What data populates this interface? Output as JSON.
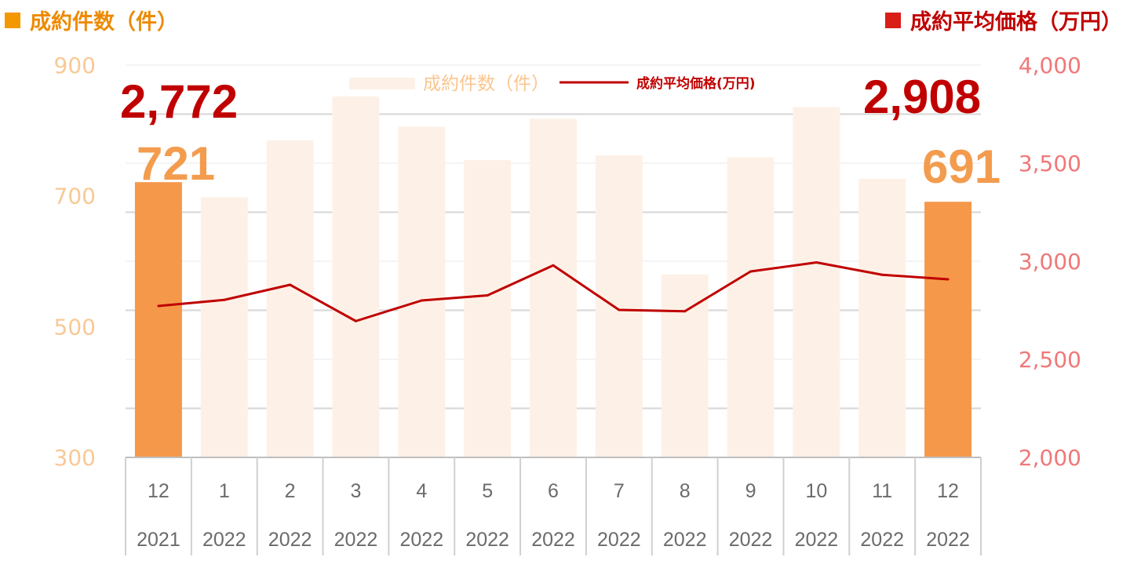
{
  "header": {
    "left_title": "成約件数（件）",
    "right_title": "成約平均価格（万円）"
  },
  "colors": {
    "bar_highlight": "#f5984a",
    "bar_faded": "#fdf1e7",
    "line": "#c00000",
    "left_axis": "#f8c995",
    "right_axis": "#f07878"
  },
  "chart_data": {
    "type": "bar",
    "categories": [
      {
        "month": "12",
        "year": "2021"
      },
      {
        "month": "1",
        "year": "2022"
      },
      {
        "month": "2",
        "year": "2022"
      },
      {
        "month": "3",
        "year": "2022"
      },
      {
        "month": "4",
        "year": "2022"
      },
      {
        "month": "5",
        "year": "2022"
      },
      {
        "month": "6",
        "year": "2022"
      },
      {
        "month": "7",
        "year": "2022"
      },
      {
        "month": "8",
        "year": "2022"
      },
      {
        "month": "9",
        "year": "2022"
      },
      {
        "month": "10",
        "year": "2022"
      },
      {
        "month": "11",
        "year": "2022"
      },
      {
        "month": "12",
        "year": "2022"
      }
    ],
    "series": [
      {
        "name": "成約件数（件）",
        "type": "bar",
        "axis": "left",
        "values": [
          721,
          698,
          785,
          852,
          806,
          755,
          818,
          762,
          580,
          759,
          836,
          726,
          691
        ],
        "highlighted": [
          true,
          false,
          false,
          false,
          false,
          false,
          false,
          false,
          false,
          false,
          false,
          false,
          true
        ]
      },
      {
        "name": "成約平均価格(万円)",
        "type": "line",
        "axis": "right",
        "values": [
          2772,
          2803,
          2880,
          2695,
          2800,
          2826,
          2979,
          2752,
          2745,
          2948,
          2994,
          2931,
          2908
        ]
      }
    ],
    "y_left": {
      "range": [
        300,
        900
      ],
      "ticks": [
        "300",
        "500",
        "700",
        "900"
      ]
    },
    "y_right": {
      "range": [
        2000,
        4000
      ],
      "ticks": [
        "2,000",
        "2,500",
        "3,000",
        "3,500",
        "4,000"
      ]
    },
    "callouts": {
      "first_price": "2,772",
      "first_count": "721",
      "last_price": "2,908",
      "last_count": "691"
    },
    "legend": "top-center",
    "grid": true
  }
}
